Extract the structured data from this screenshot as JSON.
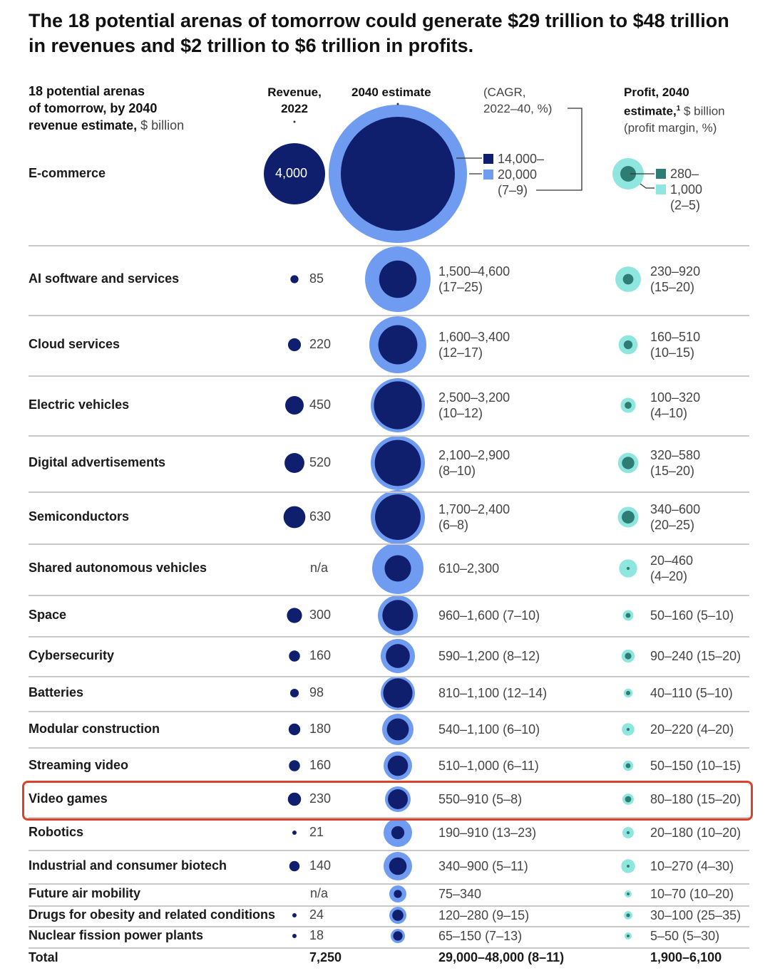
{
  "title": "The 18 potential arenas of tomorrow could generate $29 trillion to $48 trillion in revenues and $2 trillion to $6 trillion in profits.",
  "headers": {
    "arena_1": "18 potential arenas",
    "arena_2": "of tomorrow, by 2040",
    "arena_3_bold": "revenue estimate,",
    "arena_3_light": " $ billion",
    "rev_1": "Revenue,",
    "rev_2": "2022",
    "est": "2040 estimate",
    "cagr_1": "(CAGR,",
    "cagr_2": "2022–40, %)",
    "profit_1": "Profit, 2040",
    "profit_2_bold": "estimate,",
    "profit_2_sup": "1",
    "profit_2_light": " $ billion",
    "profit_3": "(profit margin, %)"
  },
  "legend": {
    "est_low": "14,000–",
    "est_high": "20,000",
    "est_cagr": "(7–9)",
    "profit_low": "280–",
    "profit_high": "1,000",
    "profit_margin": "(2–5)"
  },
  "colors": {
    "revenue": "#0f1f6e",
    "est_low": "#0f1f6e",
    "est_high": "#6f9cf0",
    "profit_low": "#2e7d74",
    "profit_high": "#8fe6de",
    "highlight": "#d9432c"
  },
  "highlighted_row": "Video games",
  "chart_data": {
    "type": "table",
    "title": "The 18 potential arenas of tomorrow could generate $29 trillion to $48 trillion in revenues and $2 trillion to $6 trillion in profits.",
    "columns": [
      "Arena",
      "Revenue, 2022 ($ billion)",
      "2040 revenue estimate ($ billion, CAGR 2022–40 %)",
      "Profit, 2040 estimate ($ billion, profit margin %)"
    ],
    "rows": [
      {
        "arena": "E-commerce",
        "rev2022": 4000,
        "rev_label": "4,000",
        "est_low": 14000,
        "est_high": 20000,
        "est_text": "14,000–20,000 (7–9)",
        "profit_low": 280,
        "profit_high": 1000,
        "profit_text": "280–1,000 (2–5)"
      },
      {
        "arena": "AI software and services",
        "rev2022": 85,
        "rev_label": "85",
        "est_low": 1500,
        "est_high": 4600,
        "est_line1": "1,500–4,600",
        "est_line2": "(17–25)",
        "profit_low": 230,
        "profit_high": 920,
        "profit_line1": "230–920",
        "profit_line2": "(15–20)"
      },
      {
        "arena": "Cloud services",
        "rev2022": 220,
        "rev_label": "220",
        "est_low": 1600,
        "est_high": 3400,
        "est_line1": "1,600–3,400",
        "est_line2": "(12–17)",
        "profit_low": 160,
        "profit_high": 510,
        "profit_line1": "160–510",
        "profit_line2": "(10–15)"
      },
      {
        "arena": "Electric vehicles",
        "rev2022": 450,
        "rev_label": "450",
        "est_low": 2500,
        "est_high": 3200,
        "est_line1": "2,500–3,200",
        "est_line2": "(10–12)",
        "profit_low": 100,
        "profit_high": 320,
        "profit_line1": "100–320",
        "profit_line2": "(4–10)"
      },
      {
        "arena": "Digital advertisements",
        "rev2022": 520,
        "rev_label": "520",
        "est_low": 2100,
        "est_high": 2900,
        "est_line1": "2,100–2,900",
        "est_line2": "(8–10)",
        "profit_low": 320,
        "profit_high": 580,
        "profit_line1": "320–580",
        "profit_line2": "(15–20)"
      },
      {
        "arena": "Semiconductors",
        "rev2022": 630,
        "rev_label": "630",
        "est_low": 1700,
        "est_high": 2400,
        "est_line1": "1,700–2,400",
        "est_line2": "(6–8)",
        "profit_low": 340,
        "profit_high": 600,
        "profit_line1": "340–600",
        "profit_line2": "(20–25)"
      },
      {
        "arena": "Shared autonomous vehicles",
        "rev2022": null,
        "rev_label": "n/a",
        "est_low": 610,
        "est_high": 2300,
        "est_line1": "610–2,300",
        "est_line2": "",
        "profit_low": 20,
        "profit_high": 460,
        "profit_line1": "20–460",
        "profit_line2": "(4–20)"
      },
      {
        "arena": "Space",
        "rev2022": 300,
        "rev_label": "300",
        "est_low": 960,
        "est_high": 1600,
        "est_line1": "960–1,600 (7–10)",
        "est_line2": "",
        "profit_low": 50,
        "profit_high": 160,
        "profit_line1": "50–160 (5–10)",
        "profit_line2": ""
      },
      {
        "arena": "Cybersecurity",
        "rev2022": 160,
        "rev_label": "160",
        "est_low": 590,
        "est_high": 1200,
        "est_line1": "590–1,200 (8–12)",
        "est_line2": "",
        "profit_low": 90,
        "profit_high": 240,
        "profit_line1": "90–240 (15–20)",
        "profit_line2": ""
      },
      {
        "arena": "Batteries",
        "rev2022": 98,
        "rev_label": "98",
        "est_low": 810,
        "est_high": 1100,
        "est_line1": "810–1,100 (12–14)",
        "est_line2": "",
        "profit_low": 40,
        "profit_high": 110,
        "profit_line1": "40–110 (5–10)",
        "profit_line2": ""
      },
      {
        "arena": "Modular construction",
        "rev2022": 180,
        "rev_label": "180",
        "est_low": 540,
        "est_high": 1100,
        "est_line1": "540–1,100 (6–10)",
        "est_line2": "",
        "profit_low": 20,
        "profit_high": 220,
        "profit_line1": "20–220 (4–20)",
        "profit_line2": ""
      },
      {
        "arena": "Streaming video",
        "rev2022": 160,
        "rev_label": "160",
        "est_low": 510,
        "est_high": 1000,
        "est_line1": "510–1,000 (6–11)",
        "est_line2": "",
        "profit_low": 50,
        "profit_high": 150,
        "profit_line1": "50–150 (10–15)",
        "profit_line2": ""
      },
      {
        "arena": "Video games",
        "rev2022": 230,
        "rev_label": "230",
        "est_low": 550,
        "est_high": 910,
        "est_line1": "550–910 (5–8)",
        "est_line2": "",
        "profit_low": 80,
        "profit_high": 180,
        "profit_line1": "80–180 (15–20)",
        "profit_line2": ""
      },
      {
        "arena": "Robotics",
        "rev2022": 21,
        "rev_label": "21",
        "est_low": 190,
        "est_high": 910,
        "est_line1": "190–910 (13–23)",
        "est_line2": "",
        "profit_low": 20,
        "profit_high": 180,
        "profit_line1": "20–180 (10–20)",
        "profit_line2": ""
      },
      {
        "arena": "Industrial and consumer biotech",
        "rev2022": 140,
        "rev_label": "140",
        "est_low": 340,
        "est_high": 900,
        "est_line1": "340–900 (5–11)",
        "est_line2": "",
        "profit_low": 10,
        "profit_high": 270,
        "profit_line1": "10–270 (4–30)",
        "profit_line2": ""
      },
      {
        "arena": "Future air mobility",
        "rev2022": null,
        "rev_label": "n/a",
        "est_low": 75,
        "est_high": 340,
        "est_line1": "75–340",
        "est_line2": "",
        "profit_low": 10,
        "profit_high": 70,
        "profit_line1": "10–70 (10–20)",
        "profit_line2": ""
      },
      {
        "arena": "Drugs for obesity and related conditions",
        "rev2022": 24,
        "rev_label": "24",
        "est_low": 120,
        "est_high": 280,
        "est_line1": "120–280 (9–15)",
        "est_line2": "",
        "profit_low": 30,
        "profit_high": 100,
        "profit_line1": "30–100 (25–35)",
        "profit_line2": ""
      },
      {
        "arena": "Nuclear fission power plants",
        "rev2022": 18,
        "rev_label": "18",
        "est_low": 65,
        "est_high": 150,
        "est_line1": "65–150 (7–13)",
        "est_line2": "",
        "profit_low": 5,
        "profit_high": 50,
        "profit_line1": "5–50 (5–30)",
        "profit_line2": ""
      }
    ],
    "total": {
      "label": "Total",
      "rev2022": "7,250",
      "est": "29,000–48,000 (8–11)",
      "profit": "1,900–6,100"
    }
  }
}
